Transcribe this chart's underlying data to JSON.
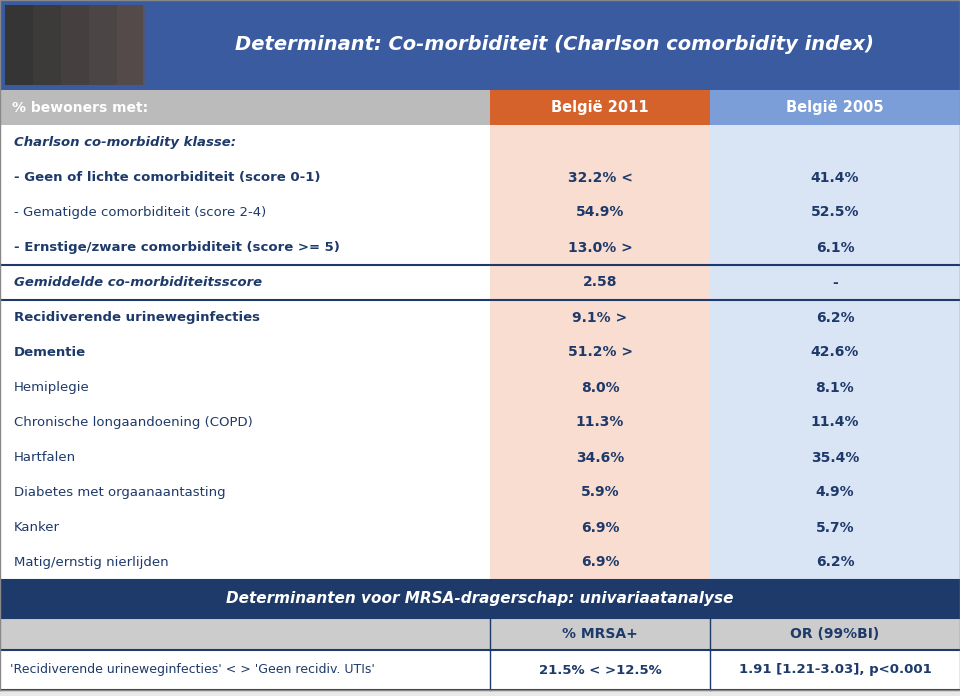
{
  "title": "Determinant: Co-morbiditeit (Charlson comorbidity index)",
  "title_color": "#FFFFFF",
  "title_bg": "#3A5BA0",
  "header_col1": "% bewoners met:",
  "header_col2": "België 2011",
  "header_col3": "België 2005",
  "header_bg_col1": "#BBBBBB",
  "header_bg_col2": "#D4622A",
  "header_bg_col3": "#7B9ED9",
  "col2_bg": "#F9DDD0",
  "col3_bg": "#D9E4F5",
  "rows": [
    {
      "label": "Charlson co-morbidity klasse:",
      "val2": "",
      "val3": "",
      "bold": true,
      "italic": true,
      "section_header": true
    },
    {
      "label": "- Geen of lichte comorbiditeit (score 0-1)",
      "val2": "32.2% <",
      "val3": "41.4%",
      "bold": true,
      "italic": false
    },
    {
      "label": "- Gematigde comorbiditeit (score 2-4)",
      "val2": "54.9%",
      "val3": "52.5%",
      "bold": false,
      "italic": false
    },
    {
      "label": "- Ernstige/zware comorbiditeit (score >= 5)",
      "val2": "13.0% >",
      "val3": "6.1%",
      "bold": true,
      "italic": false
    },
    {
      "label": "Gemiddelde co-morbiditeitsscore",
      "val2": "2.58",
      "val3": "-",
      "bold": true,
      "italic": true,
      "separator": true
    },
    {
      "label": "Recidiverende urineweginfecties",
      "val2": "9.1% >",
      "val3": "6.2%",
      "bold": true,
      "italic": false
    },
    {
      "label": "Dementie",
      "val2": "51.2% >",
      "val3": "42.6%",
      "bold": true,
      "italic": false
    },
    {
      "label": "Hemiplegie",
      "val2": "8.0%",
      "val3": "8.1%",
      "bold": false,
      "italic": false
    },
    {
      "label": "Chronische longaandoening (COPD)",
      "val2": "11.3%",
      "val3": "11.4%",
      "bold": false,
      "italic": false
    },
    {
      "label": "Hartfalen",
      "val2": "34.6%",
      "val3": "35.4%",
      "bold": false,
      "italic": false
    },
    {
      "label": "Diabetes met orgaanaantasting",
      "val2": "5.9%",
      "val3": "4.9%",
      "bold": false,
      "italic": false
    },
    {
      "label": "Kanker",
      "val2": "6.9%",
      "val3": "5.7%",
      "bold": false,
      "italic": false
    },
    {
      "label": "Matig/ernstig nierlijden",
      "val2": "6.9%",
      "val3": "6.2%",
      "bold": false,
      "italic": false
    }
  ],
  "footer_title": "Determinanten voor MRSA-dragerschap: univariaatanalyse",
  "footer_title_bg": "#1E3A6A",
  "footer_title_color": "#FFFFFF",
  "footer_header_bg": "#CCCCCC",
  "footer_col2_header": "% MRSA+",
  "footer_col3_header": "OR (99%BI)",
  "footer_row_label": "'Recidiverende urineweginfecties' < > 'Geen recidiv. UTIs'",
  "footer_row_val2": "21.5% < >12.5%",
  "footer_row_val3_normal": "1.91 ",
  "footer_row_val3_bold": "[1.21-3.03], p<0.001",
  "footer_row_val3": "1.91 [1.21-3.03], p<0.001",
  "text_color": "#1E3A6A",
  "separator_color": "#1E3A6A",
  "img_bg": "#888888",
  "outer_bg": "#E8E8E8"
}
